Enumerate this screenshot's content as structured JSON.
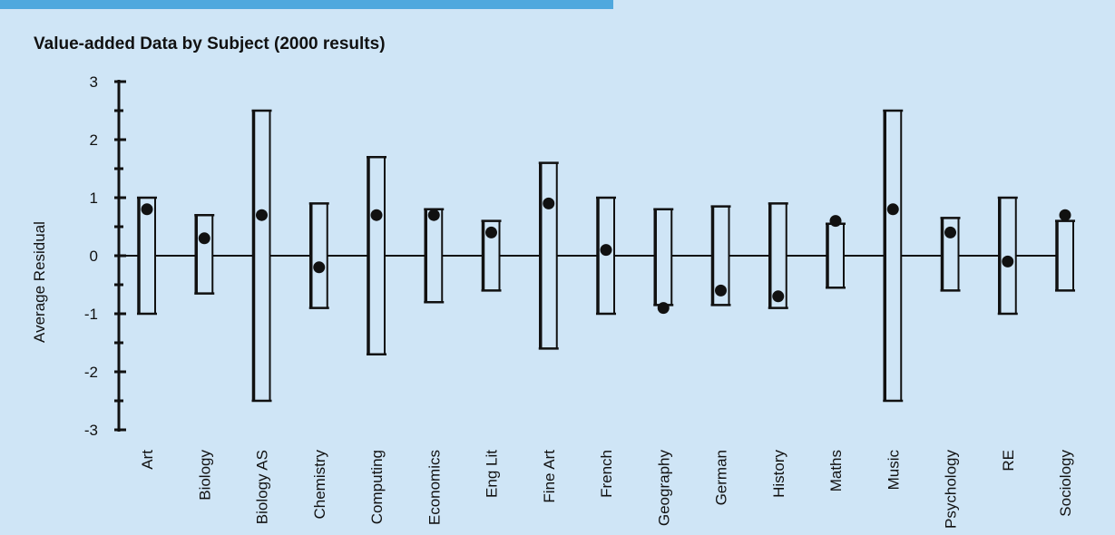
{
  "header": {
    "band_color": "#4fa8de",
    "background_color": "#cfe5f6"
  },
  "chart_data": {
    "type": "box",
    "title": "Value-added Data by Subject (2000 results)",
    "xlabel": "",
    "ylabel": "Average Residual",
    "ylim": [
      -3,
      3
    ],
    "yticks": [
      3,
      2,
      1,
      0,
      -1,
      -2,
      -3
    ],
    "grid": false,
    "legend": "none",
    "categories": [
      "Art",
      "Biology",
      "Biology AS",
      "Chemistry",
      "Computing",
      "Economics",
      "Eng Lit",
      "Fine Art",
      "French",
      "Geography",
      "German",
      "History",
      "Maths",
      "Music",
      "Psychology",
      "RE",
      "Sociology"
    ],
    "series": [
      {
        "high": [
          1.0,
          0.7,
          2.5,
          0.9,
          1.7,
          0.8,
          0.6,
          1.6,
          1.0,
          0.8,
          0.85,
          0.9,
          0.55,
          2.5,
          0.65,
          1.0,
          0.6
        ],
        "low": [
          -1.0,
          -0.65,
          -2.5,
          -0.9,
          -1.7,
          -0.8,
          -0.6,
          -1.6,
          -1.0,
          -0.85,
          -0.85,
          -0.9,
          -0.55,
          -2.5,
          -0.6,
          -1.0,
          -0.6
        ],
        "point": [
          0.8,
          0.3,
          0.7,
          -0.2,
          0.7,
          0.7,
          0.4,
          0.9,
          0.1,
          -0.9,
          -0.6,
          -0.7,
          0.6,
          0.8,
          0.4,
          -0.1,
          0.7
        ]
      }
    ]
  }
}
